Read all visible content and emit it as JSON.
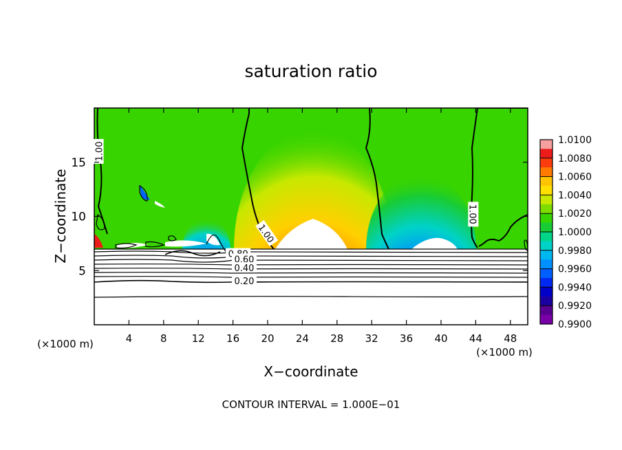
{
  "chart_data": {
    "type": "heatmap",
    "title": "saturation ratio",
    "xlabel": "X−coordinate",
    "ylabel": "Z−coordinate",
    "x_unit_label_left": "(×1000 m)",
    "x_unit_label_right": "(×1000 m)",
    "xlim": [
      0,
      50
    ],
    "ylim": [
      0,
      20
    ],
    "x_ticks": [
      4,
      8,
      12,
      16,
      20,
      24,
      28,
      32,
      36,
      40,
      44,
      48
    ],
    "y_ticks": [
      5,
      10,
      15
    ],
    "colorbar": {
      "min": 0.99,
      "max": 1.01,
      "labels": [
        "1.0100",
        "1.0080",
        "1.0060",
        "1.0040",
        "1.0020",
        "1.0000",
        "0.9980",
        "0.9960",
        "0.9940",
        "0.9920",
        "0.9900"
      ],
      "colors": [
        "#f7a0a0",
        "#ee1b1b",
        "#fb3c0c",
        "#ff7a00",
        "#ffc400",
        "#ffe000",
        "#c8e800",
        "#7fdc00",
        "#38d400",
        "#18cc36",
        "#00d488",
        "#00d2c8",
        "#00b8f0",
        "#0090ff",
        "#0060ff",
        "#0028f0",
        "#0000c8",
        "#1a00a0",
        "#5a0090",
        "#7a00a8"
      ]
    },
    "contour_labels": [
      {
        "text": "1.00",
        "x": 0.6,
        "z": 16
      },
      {
        "text": "1.00",
        "x": 19.8,
        "z": 8.4
      },
      {
        "text": "1.00",
        "x": 43.6,
        "z": 10.2
      },
      {
        "text": "0.80",
        "x": 16.6,
        "z": 6.5
      },
      {
        "text": "0.60",
        "x": 17.3,
        "z": 6.0
      },
      {
        "text": "0.40",
        "x": 17.3,
        "z": 5.2
      },
      {
        "text": "0.20",
        "x": 17.3,
        "z": 4.0
      }
    ],
    "footer": "CONTOUR INTERVAL = 1.000E−01"
  }
}
